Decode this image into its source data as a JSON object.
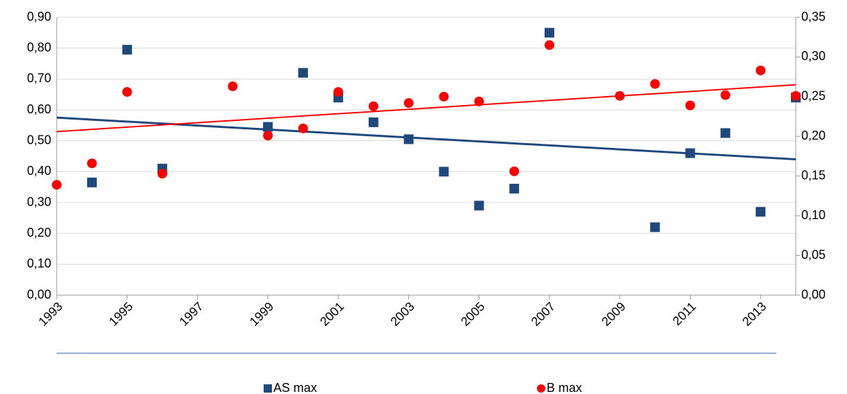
{
  "chart_data": {
    "type": "scatter",
    "xlim": [
      1993,
      2014
    ],
    "xticks": [
      1993,
      1995,
      1997,
      1999,
      2001,
      2003,
      2005,
      2007,
      2009,
      2011,
      2013
    ],
    "ylim": [
      0,
      0.9
    ],
    "yticks": [
      {
        "value": 0,
        "label": "0,00"
      },
      {
        "value": 0.1,
        "label": "0,10"
      },
      {
        "value": 0.2,
        "label": "0,20"
      },
      {
        "value": 0.3,
        "label": "0,30"
      },
      {
        "value": 0.4,
        "label": "0,40"
      },
      {
        "value": 0.5,
        "label": "0,50"
      },
      {
        "value": 0.6,
        "label": "0,60"
      },
      {
        "value": 0.7,
        "label": "0,70"
      },
      {
        "value": 0.8,
        "label": "0,80"
      },
      {
        "value": 0.9,
        "label": "0,90"
      }
    ],
    "y2lim": [
      0,
      0.35
    ],
    "y2ticks": [
      {
        "value": 0,
        "label": "0,00"
      },
      {
        "value": 0.05,
        "label": "0,05"
      },
      {
        "value": 0.1,
        "label": "0,10"
      },
      {
        "value": 0.15,
        "label": "0,15"
      },
      {
        "value": 0.2,
        "label": "0,20"
      },
      {
        "value": 0.25,
        "label": "0,25"
      },
      {
        "value": 0.3,
        "label": "0,30"
      },
      {
        "value": 0.35,
        "label": "0,35"
      }
    ],
    "grid": true,
    "legend": "bottom",
    "series": [
      {
        "name": "AS max",
        "color": "#1f497d",
        "marker": "square",
        "x": [
          1994,
          1995,
          1996,
          1999,
          2000,
          2001,
          2002,
          2003,
          2004,
          2005,
          2006,
          2007,
          2010,
          2011,
          2012,
          2013,
          2014
        ],
        "values": [
          0.365,
          0.795,
          0.41,
          0.545,
          0.72,
          0.64,
          0.56,
          0.505,
          0.4,
          0.29,
          0.345,
          0.85,
          0.22,
          0.46,
          0.525,
          0.27,
          0.64
        ],
        "trend": {
          "x": [
            1993,
            2014
          ],
          "values": [
            0.575,
            0.44
          ]
        }
      },
      {
        "name": "B max",
        "color": "#ff0000",
        "marker": "circle",
        "axis": "y2",
        "x": [
          1993,
          1994,
          1995,
          1996,
          1998,
          1999,
          2000,
          2001,
          2002,
          2003,
          2004,
          2005,
          2006,
          2007,
          2009,
          2010,
          2011,
          2012,
          2013,
          2014
        ],
        "values": [
          0.139,
          0.166,
          0.256,
          0.153,
          0.263,
          0.201,
          0.21,
          0.256,
          0.238,
          0.242,
          0.25,
          0.244,
          0.156,
          0.315,
          0.251,
          0.266,
          0.239,
          0.252,
          0.283,
          0.251
        ],
        "trend": {
          "x": [
            1993,
            2014
          ],
          "values": [
            0.206,
            0.265
          ]
        }
      }
    ]
  }
}
